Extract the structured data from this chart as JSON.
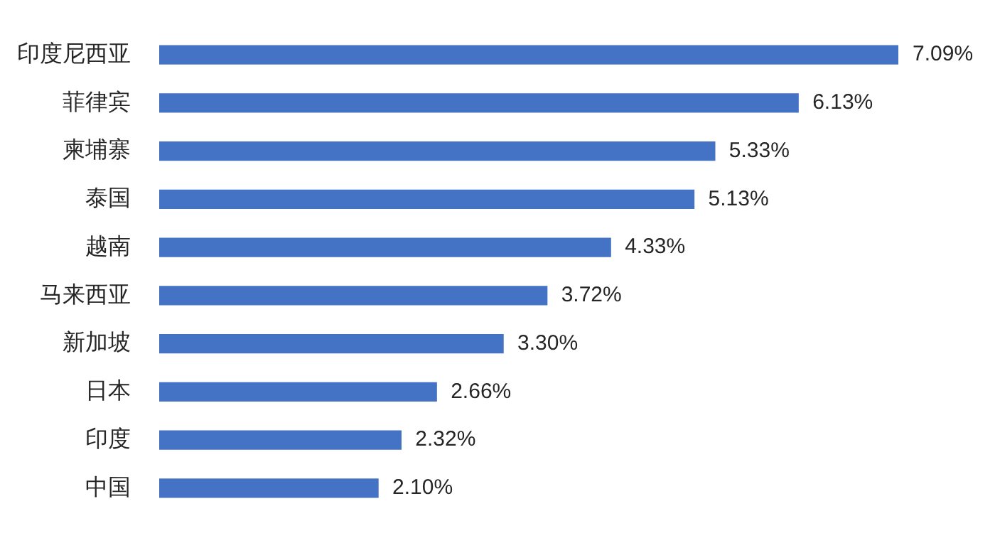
{
  "chart_data": {
    "type": "bar",
    "orientation": "horizontal",
    "categories": [
      "印度尼西亚",
      "菲律宾",
      "柬埔寨",
      "泰国",
      "越南",
      "马来西亚",
      "新加坡",
      "日本",
      "印度",
      "中国"
    ],
    "values": [
      7.09,
      6.13,
      5.33,
      5.13,
      4.33,
      3.72,
      3.3,
      2.66,
      2.32,
      2.1
    ],
    "value_labels": [
      "7.09%",
      "6.13%",
      "5.33%",
      "5.13%",
      "4.33%",
      "3.72%",
      "3.30%",
      "2.66%",
      "2.32%",
      "2.10%"
    ],
    "color": "#4472c4"
  }
}
